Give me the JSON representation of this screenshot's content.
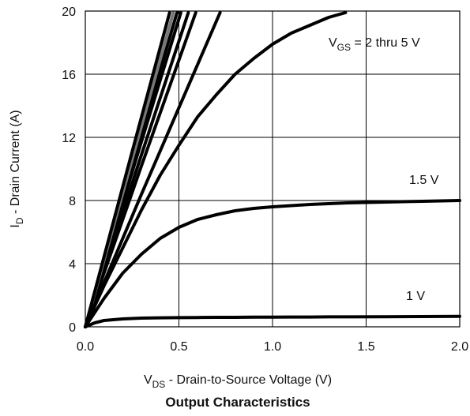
{
  "chart_data": {
    "type": "line",
    "title": "Output Characteristics",
    "xlabel": {
      "main": "V",
      "sub": "DS",
      "rest": " - Drain-to-Source Voltage (V)"
    },
    "ylabel": {
      "main": "I",
      "sub": "D",
      "rest": " - Drain Current (A)"
    },
    "xlim": [
      0,
      2.0
    ],
    "ylim": [
      0,
      20
    ],
    "xticks": [
      "0.0",
      "0.5",
      "1.0",
      "1.5",
      "2.0"
    ],
    "yticks": [
      "0",
      "4",
      "8",
      "12",
      "16",
      "20"
    ],
    "grid": true,
    "series_labels": [
      {
        "main": "V",
        "sub": "GS",
        "rest": " = 2 thru 5 V"
      },
      {
        "main": "1.5 V"
      },
      {
        "main": "1 V"
      }
    ],
    "series": [
      {
        "color": "#000000",
        "x": [
          0,
          0.05,
          0.1,
          0.15,
          0.2,
          0.3,
          0.4,
          0.5,
          0.6,
          0.7,
          0.8,
          0.9,
          1.0,
          1.1,
          1.2,
          1.3,
          1.4,
          1.6,
          1.8,
          2.0
        ],
        "y": [
          0,
          0.25,
          0.4,
          0.45,
          0.5,
          0.55,
          0.57,
          0.58,
          0.59,
          0.6,
          0.6,
          0.61,
          0.61,
          0.62,
          0.62,
          0.63,
          0.63,
          0.64,
          0.65,
          0.66
        ]
      },
      {
        "color": "#000000",
        "x": [
          0,
          0.1,
          0.2,
          0.3,
          0.4,
          0.5,
          0.6,
          0.7,
          0.8,
          0.9,
          1.0,
          1.2,
          1.4,
          1.6,
          1.8,
          2.0
        ],
        "y": [
          0,
          1.8,
          3.4,
          4.6,
          5.6,
          6.3,
          6.8,
          7.1,
          7.35,
          7.5,
          7.6,
          7.75,
          7.85,
          7.9,
          7.95,
          8.0
        ]
      },
      {
        "color": "#000000",
        "x": [
          0,
          0.1,
          0.2,
          0.3,
          0.4,
          0.5,
          0.6,
          0.7,
          0.8,
          0.9,
          1.0,
          1.1,
          1.2,
          1.3,
          1.39
        ],
        "y": [
          0,
          2.6,
          5.0,
          7.4,
          9.6,
          11.5,
          13.3,
          14.7,
          16.0,
          17.0,
          17.9,
          18.6,
          19.1,
          19.6,
          19.9
        ]
      },
      {
        "color": "#000000",
        "x": [
          0,
          0.3,
          0.59
        ],
        "y": [
          0,
          10.2,
          19.9
        ]
      },
      {
        "color": "#000000",
        "x": [
          0,
          0.3,
          0.55
        ],
        "y": [
          0,
          10.9,
          19.9
        ]
      },
      {
        "color": "#000000",
        "x": [
          0,
          0.25,
          0.51
        ],
        "y": [
          0,
          9.8,
          19.9
        ]
      },
      {
        "color": "#000000",
        "x": [
          0,
          0.25,
          0.49
        ],
        "y": [
          0,
          10.2,
          19.9
        ]
      },
      {
        "color": "#777777",
        "x": [
          0,
          0.25,
          0.47
        ],
        "y": [
          0,
          10.6,
          19.9
        ]
      },
      {
        "color": "#000000",
        "x": [
          0,
          0.25,
          0.45
        ],
        "y": [
          0,
          11.1,
          19.9
        ]
      },
      {
        "color": "#000000",
        "x": [
          0,
          0.3,
          0.72
        ],
        "y": [
          0,
          8.4,
          19.9
        ]
      }
    ]
  }
}
